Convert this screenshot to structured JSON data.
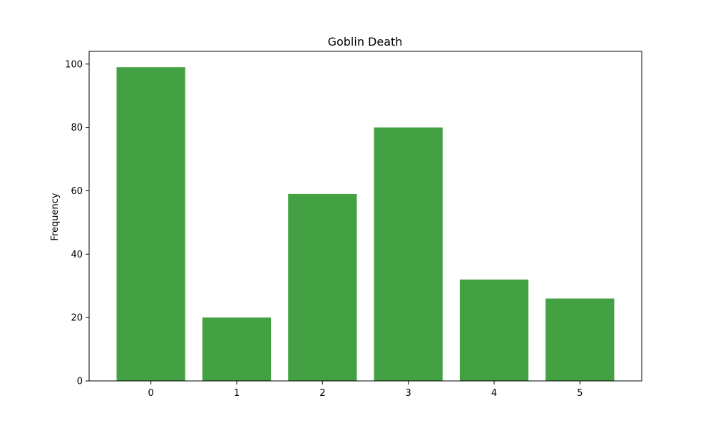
{
  "chart_data": {
    "type": "bar",
    "title": "Goblin Death",
    "xlabel": "",
    "ylabel": "Frequency",
    "categories": [
      "0",
      "1",
      "2",
      "3",
      "4",
      "5"
    ],
    "values": [
      99,
      20,
      59,
      80,
      32,
      26
    ],
    "ylim": [
      0,
      104
    ],
    "yticks": [
      0,
      20,
      40,
      60,
      80,
      100
    ],
    "bar_color": "#43a143",
    "grid": false,
    "legend": "none"
  }
}
